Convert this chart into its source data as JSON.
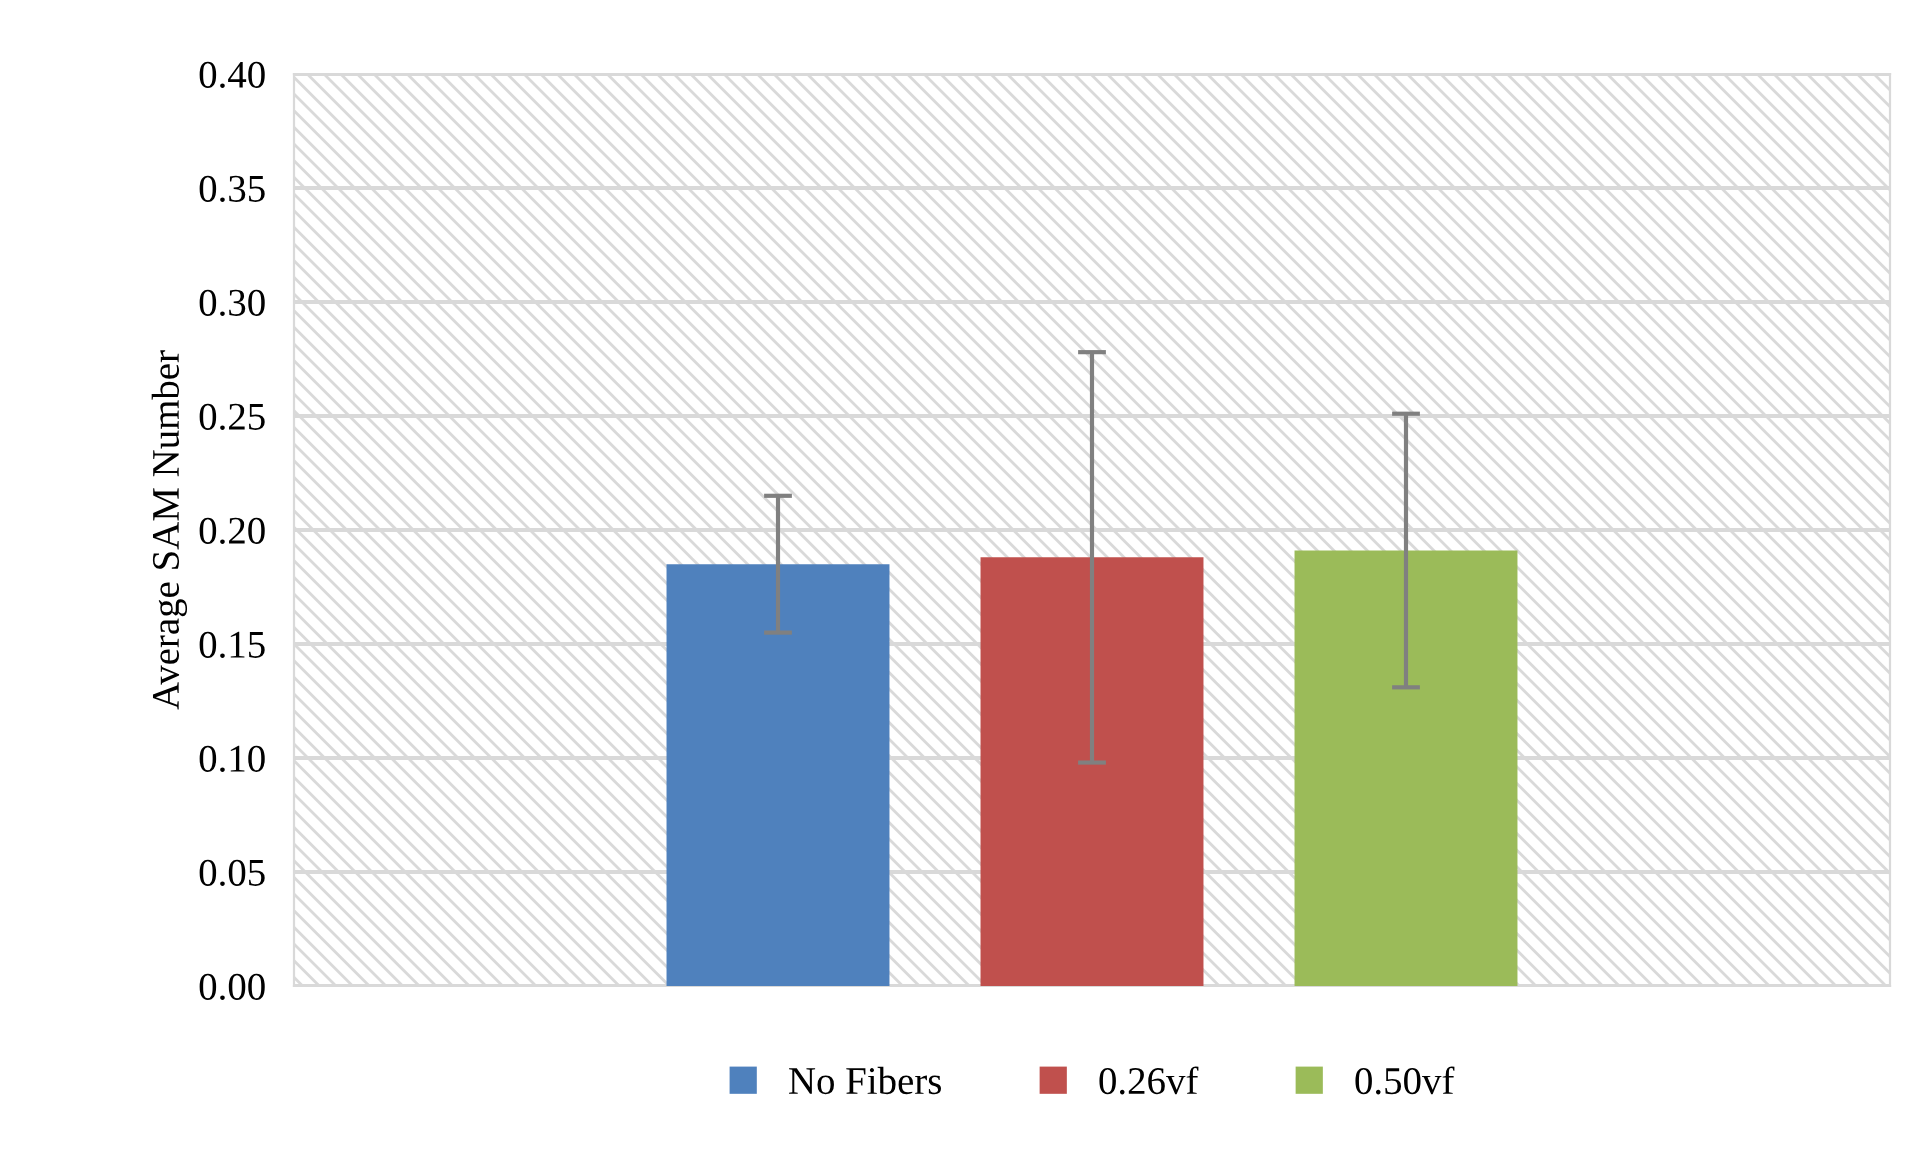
{
  "chart_data": {
    "type": "bar",
    "ylabel": "Average SAM Number",
    "categories": [
      null
    ],
    "series": [
      {
        "name": "No Fibers",
        "color": "#4f81bd",
        "values": [
          0.185
        ],
        "errors": [
          0.03
        ]
      },
      {
        "name": "0.26vf",
        "color": "#c0504d",
        "values": [
          0.188
        ],
        "errors": [
          0.09
        ]
      },
      {
        "name": "0.50vf",
        "color": "#9bbb59",
        "values": [
          0.191
        ],
        "errors": [
          0.06
        ]
      }
    ],
    "ylim": [
      0,
      0.4
    ],
    "yticks": [
      {
        "value": 0,
        "label": "0.00"
      },
      {
        "value": 0.05,
        "label": "0.05"
      },
      {
        "value": 0.1,
        "label": "0.10"
      },
      {
        "value": 0.15,
        "label": "0.15"
      },
      {
        "value": 0.2,
        "label": "0.20"
      },
      {
        "value": 0.25,
        "label": "0.25"
      },
      {
        "value": 0.3,
        "label": "0.30"
      },
      {
        "value": 0.35,
        "label": "0.35"
      },
      {
        "value": 0.4,
        "label": "0.40"
      }
    ],
    "grid": "y",
    "legend": "bottom"
  }
}
